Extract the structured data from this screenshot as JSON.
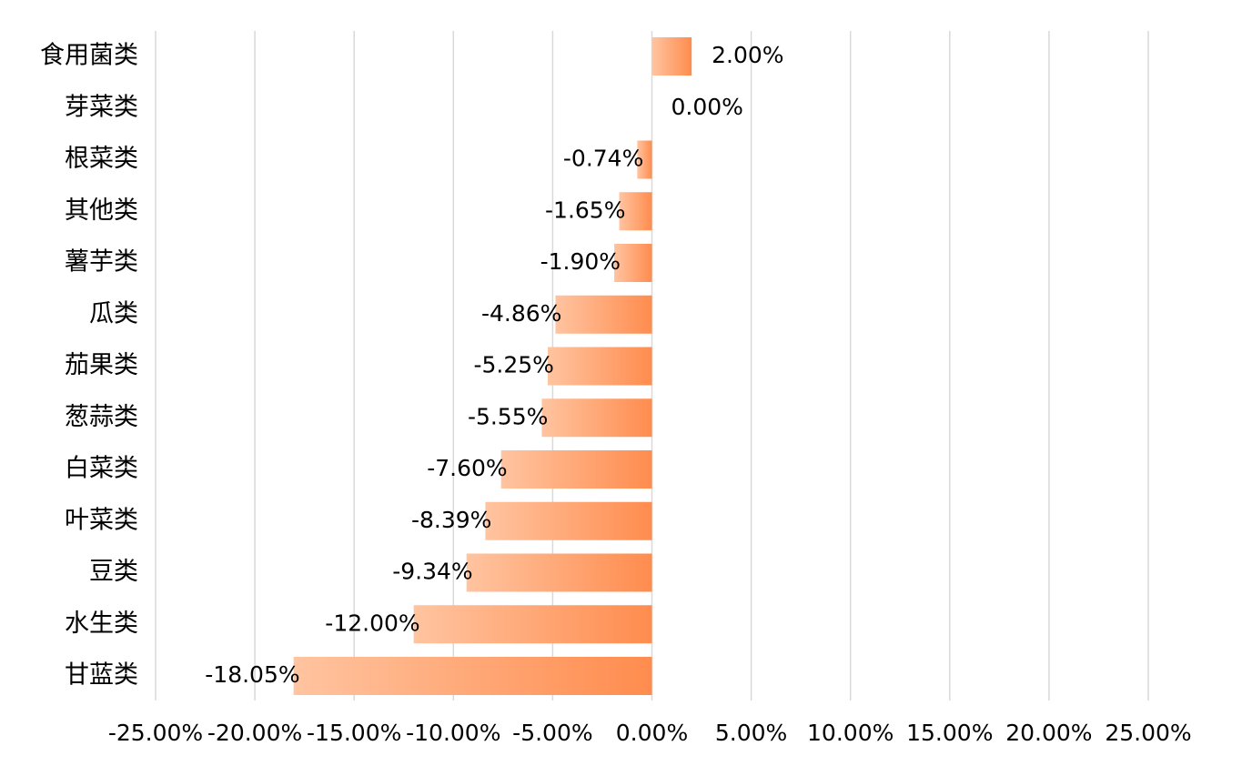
{
  "chart_data": {
    "type": "bar",
    "orientation": "horizontal",
    "categories": [
      "食用菌类",
      "芽菜类",
      "根菜类",
      "其他类",
      "薯芋类",
      "瓜类",
      "茄果类",
      "葱蒜类",
      "白菜类",
      "叶菜类",
      "豆类",
      "水生类",
      "甘蓝类"
    ],
    "values": [
      2.0,
      0.0,
      -0.74,
      -1.65,
      -1.9,
      -4.86,
      -5.25,
      -5.55,
      -7.6,
      -8.39,
      -9.34,
      -12.0,
      -18.05
    ],
    "value_labels": [
      "2.00%",
      "0.00%",
      "-0.74%",
      "-1.65%",
      "-1.90%",
      "-4.86%",
      "-5.25%",
      "-5.55%",
      "-7.60%",
      "-8.39%",
      "-9.34%",
      "-12.00%",
      "-18.05%"
    ],
    "xlim": [
      -25,
      25
    ],
    "x_ticks": [
      -25,
      -20,
      -15,
      -10,
      -5,
      0,
      5,
      10,
      15,
      20,
      25
    ],
    "x_tick_labels": [
      "-25.00%",
      "-20.00%",
      "-15.00%",
      "-10.00%",
      "-5.00%",
      "0.00%",
      "5.00%",
      "10.00%",
      "15.00%",
      "20.00%",
      "25.00%"
    ],
    "grid": "vertical",
    "legend": "none",
    "title": "",
    "xlabel": "",
    "ylabel": "",
    "colors": {
      "bar_light": "#ffc4a0",
      "bar_dark": "#ff8c4e",
      "grid": "#d9d9d9",
      "text": "#000000"
    }
  }
}
